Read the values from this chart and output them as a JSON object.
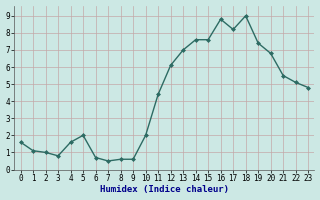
{
  "x": [
    0,
    1,
    2,
    3,
    4,
    5,
    6,
    7,
    8,
    9,
    10,
    11,
    12,
    13,
    14,
    15,
    16,
    17,
    18,
    19,
    20,
    21,
    22,
    23
  ],
  "y": [
    1.6,
    1.1,
    1.0,
    0.8,
    1.6,
    2.0,
    0.7,
    0.5,
    0.6,
    0.6,
    2.0,
    4.4,
    6.1,
    7.0,
    7.6,
    7.6,
    8.8,
    8.2,
    9.0,
    7.4,
    6.8,
    5.5,
    5.1,
    4.8
  ],
  "xlabel": "Humidex (Indice chaleur)",
  "line_color": "#2d6b63",
  "marker_color": "#2d6b63",
  "bg_color": "#cce8e4",
  "grid_color": "#c4a8a8",
  "xlim": [
    -0.5,
    23.5
  ],
  "ylim": [
    0,
    9.6
  ],
  "yticks": [
    0,
    1,
    2,
    3,
    4,
    5,
    6,
    7,
    8,
    9
  ],
  "xlabel_color": "#00008b",
  "tick_fontsize": 5.5,
  "xlabel_fontsize": 6.5
}
